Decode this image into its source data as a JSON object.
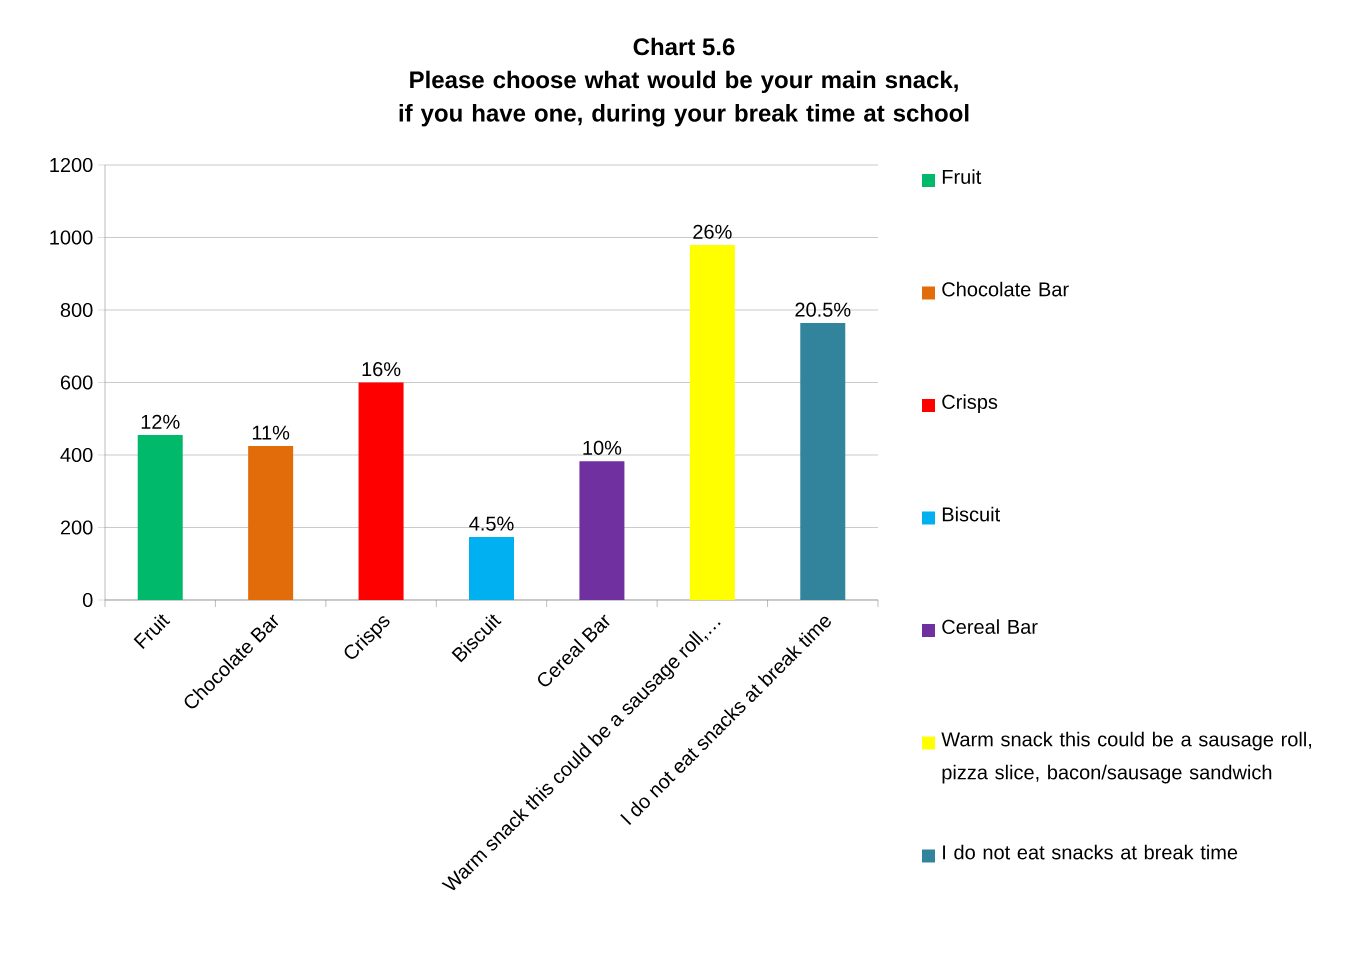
{
  "chart_data": {
    "type": "bar",
    "title": "Chart 5.6",
    "subtitle": "Please choose what would be your main snack, if you have one, during your break time at school",
    "categories": [
      "Fruit",
      "Chocolate Bar",
      "Crisps",
      "Biscuit",
      "Cereal Bar",
      "Warm snack this could be a sausage roll,…",
      "I do not eat snacks at break time"
    ],
    "series": [
      {
        "name": "Fruit",
        "color": "#00b96b",
        "values": [
          455,
          null,
          null,
          null,
          null,
          null,
          null
        ]
      },
      {
        "name": "Chocolate Bar",
        "color": "#e36c0a",
        "values": [
          null,
          425,
          null,
          null,
          null,
          null,
          null
        ]
      },
      {
        "name": "Crisps",
        "color": "#ff0000",
        "values": [
          null,
          null,
          600,
          null,
          null,
          null,
          null
        ]
      },
      {
        "name": "Biscuit",
        "color": "#00b0f0",
        "values": [
          null,
          null,
          null,
          174,
          null,
          null,
          null
        ]
      },
      {
        "name": "Cereal Bar",
        "color": "#7030a0",
        "values": [
          null,
          null,
          null,
          null,
          383,
          null,
          null
        ]
      },
      {
        "name": "Warm snack this could be a sausage roll, pizza slice, bacon/sausage sandwich",
        "color": "#ffff00",
        "values": [
          null,
          null,
          null,
          null,
          null,
          979,
          null
        ]
      },
      {
        "name": "I do not eat snacks at break time",
        "color": "#31849b",
        "values": [
          null,
          null,
          null,
          null,
          null,
          null,
          764
        ]
      }
    ],
    "annotations": [
      {
        "text": "12%",
        "x": "Fruit",
        "y": 455
      },
      {
        "text": "11%",
        "x": "Chocolate Bar",
        "y": 425
      },
      {
        "text": "16%",
        "x": "Crisps",
        "y": 600
      },
      {
        "text": "4.5%",
        "x": "Biscuit",
        "y": 174
      },
      {
        "text": "10%",
        "x": "Cereal Bar",
        "y": 383
      },
      {
        "text": "26%",
        "x": "Warm snack this could be a sausage roll,…",
        "y": 979
      },
      {
        "text": "20.5%",
        "x": "I do not eat snacks at break time",
        "y": 764
      }
    ],
    "ylim": [
      0,
      1200
    ],
    "yticks": [
      0,
      200,
      400,
      600,
      800,
      1000,
      1200
    ],
    "grid": "y",
    "legend": "right"
  }
}
